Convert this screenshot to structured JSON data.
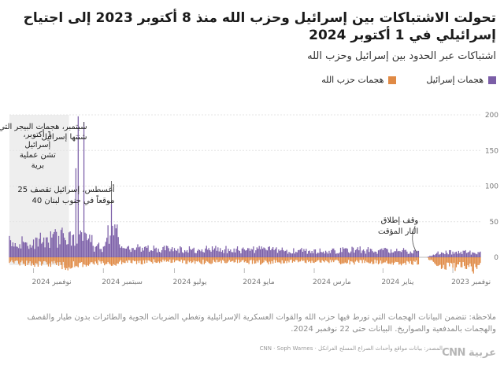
{
  "title": "تحولت الاشتباكات بين إسرائيل وحزب الله منذ 8 أكتوبر 2023 إلى اجتياح إسرائيلي في 1 أكتوبر 2024",
  "subtitle": "اشتباكات عبر الحدود بين إسرائيل وحزب الله",
  "legend": {
    "israel": "هجمات إسرائيل",
    "hezbollah": "هجمات حزب الله"
  },
  "colors": {
    "israel": "#7b5ea7",
    "hezbollah": "#e08a45",
    "shade": "#eeeeee"
  },
  "note": "ملاحظة: تتضمن البيانات الهجمات التي تورط فيها حزب الله والقوات العسكرية الإسرائيلية وتغطي الضربات الجوية والطائرات بدون طيار والقصف والهجمات بالمدفعية والصواريخ. البيانات حتى 22 نوفمبر 2024.",
  "source": "المصدر: بيانات مواقع وأحداث الصراع المسلح الفرانكل · CNN · Soph Warnes",
  "logo": "CNN عربية",
  "chart_data": {
    "type": "bar",
    "x_axis": {
      "tick_labels": [
        "نوفمبر 2023",
        "يناير 2024",
        "مارس 2024",
        "مايو 2024",
        "يوليو 2024",
        "سبتمبر 2024",
        "نوفمبر 2024"
      ],
      "tick_dates": [
        "2023-11-01",
        "2024-01-01",
        "2024-03-01",
        "2024-05-01",
        "2024-07-01",
        "2024-09-01",
        "2024-11-01"
      ],
      "range": [
        "2023-10-08",
        "2024-11-22"
      ],
      "direction": "right-to-left"
    },
    "y_axis": {
      "ticks": [
        0,
        50,
        100,
        150,
        200
      ],
      "range": [
        -30,
        200
      ],
      "position": "right"
    },
    "shaded_period": {
      "start": "2024-10-01",
      "end": "2024-11-22",
      "label": "1 أكتوبر، إسرائيل تشن عملية برية"
    },
    "annotations": [
      {
        "date": "2024-09-18",
        "text": "18 سبتمبر، هجمات البيجر التي شنتها إسرائيل"
      },
      {
        "date": "2024-08-25",
        "text": "25 أغسطس، إسرائيل تقصف 40 موقعاً في جنوب لبنان"
      },
      {
        "date": "2024-11-27",
        "text": "وقف إطلاق النار المؤقت"
      }
    ],
    "series": [
      {
        "name": "هجمات إسرائيل",
        "key": "israel",
        "values": [
          {
            "date": "2023-10-08",
            "value": 8
          },
          {
            "date": "2023-10-15",
            "value": 7
          },
          {
            "date": "2023-10-22",
            "value": 9
          },
          {
            "date": "2023-11-01",
            "value": 8
          },
          {
            "date": "2023-11-15",
            "value": 6
          },
          {
            "date": "2023-11-24",
            "value": 0
          },
          {
            "date": "2023-12-01",
            "value": 9
          },
          {
            "date": "2023-12-15",
            "value": 10
          },
          {
            "date": "2024-01-01",
            "value": 10
          },
          {
            "date": "2024-01-15",
            "value": 11
          },
          {
            "date": "2024-02-01",
            "value": 12
          },
          {
            "date": "2024-02-15",
            "value": 10
          },
          {
            "date": "2024-03-01",
            "value": 11
          },
          {
            "date": "2024-03-15",
            "value": 10
          },
          {
            "date": "2024-04-01",
            "value": 11
          },
          {
            "date": "2024-04-15",
            "value": 12
          },
          {
            "date": "2024-05-01",
            "value": 11
          },
          {
            "date": "2024-05-15",
            "value": 12
          },
          {
            "date": "2024-06-01",
            "value": 13
          },
          {
            "date": "2024-06-15",
            "value": 12
          },
          {
            "date": "2024-07-01",
            "value": 13
          },
          {
            "date": "2024-07-15",
            "value": 12
          },
          {
            "date": "2024-08-01",
            "value": 14
          },
          {
            "date": "2024-08-15",
            "value": 13
          },
          {
            "date": "2024-08-25",
            "value": 75
          },
          {
            "date": "2024-09-01",
            "value": 15
          },
          {
            "date": "2024-09-10",
            "value": 16
          },
          {
            "date": "2024-09-18",
            "value": 190
          },
          {
            "date": "2024-09-23",
            "value": 198
          },
          {
            "date": "2024-09-25",
            "value": 125
          },
          {
            "date": "2024-10-01",
            "value": 35
          },
          {
            "date": "2024-10-10",
            "value": 30
          },
          {
            "date": "2024-10-20",
            "value": 28
          },
          {
            "date": "2024-11-01",
            "value": 25
          },
          {
            "date": "2024-11-10",
            "value": 22
          },
          {
            "date": "2024-11-22",
            "value": 30
          }
        ]
      },
      {
        "name": "هجمات حزب الله",
        "key": "hezbollah",
        "values": [
          {
            "date": "2023-10-08",
            "value": -8
          },
          {
            "date": "2023-10-15",
            "value": -20
          },
          {
            "date": "2023-10-22",
            "value": -12
          },
          {
            "date": "2023-11-01",
            "value": -15
          },
          {
            "date": "2023-11-15",
            "value": -12
          },
          {
            "date": "2023-11-24",
            "value": 0
          },
          {
            "date": "2023-12-01",
            "value": -10
          },
          {
            "date": "2023-12-15",
            "value": -9
          },
          {
            "date": "2024-01-01",
            "value": -8
          },
          {
            "date": "2024-01-15",
            "value": -7
          },
          {
            "date": "2024-02-01",
            "value": -8
          },
          {
            "date": "2024-02-15",
            "value": -7
          },
          {
            "date": "2024-03-01",
            "value": -8
          },
          {
            "date": "2024-03-15",
            "value": -7
          },
          {
            "date": "2024-04-01",
            "value": -7
          },
          {
            "date": "2024-04-15",
            "value": -8
          },
          {
            "date": "2024-05-01",
            "value": -7
          },
          {
            "date": "2024-05-15",
            "value": -6
          },
          {
            "date": "2024-06-01",
            "value": -8
          },
          {
            "date": "2024-06-15",
            "value": -7
          },
          {
            "date": "2024-07-01",
            "value": -7
          },
          {
            "date": "2024-07-15",
            "value": -6
          },
          {
            "date": "2024-08-01",
            "value": -8
          },
          {
            "date": "2024-08-15",
            "value": -7
          },
          {
            "date": "2024-08-25",
            "value": -12
          },
          {
            "date": "2024-09-01",
            "value": -8
          },
          {
            "date": "2024-09-10",
            "value": -9
          },
          {
            "date": "2024-09-18",
            "value": -10
          },
          {
            "date": "2024-09-23",
            "value": -14
          },
          {
            "date": "2024-09-25",
            "value": -12
          },
          {
            "date": "2024-10-01",
            "value": -14
          },
          {
            "date": "2024-10-10",
            "value": -12
          },
          {
            "date": "2024-10-20",
            "value": -10
          },
          {
            "date": "2024-11-01",
            "value": -11
          },
          {
            "date": "2024-11-10",
            "value": -9
          },
          {
            "date": "2024-11-22",
            "value": -8
          }
        ]
      }
    ]
  }
}
